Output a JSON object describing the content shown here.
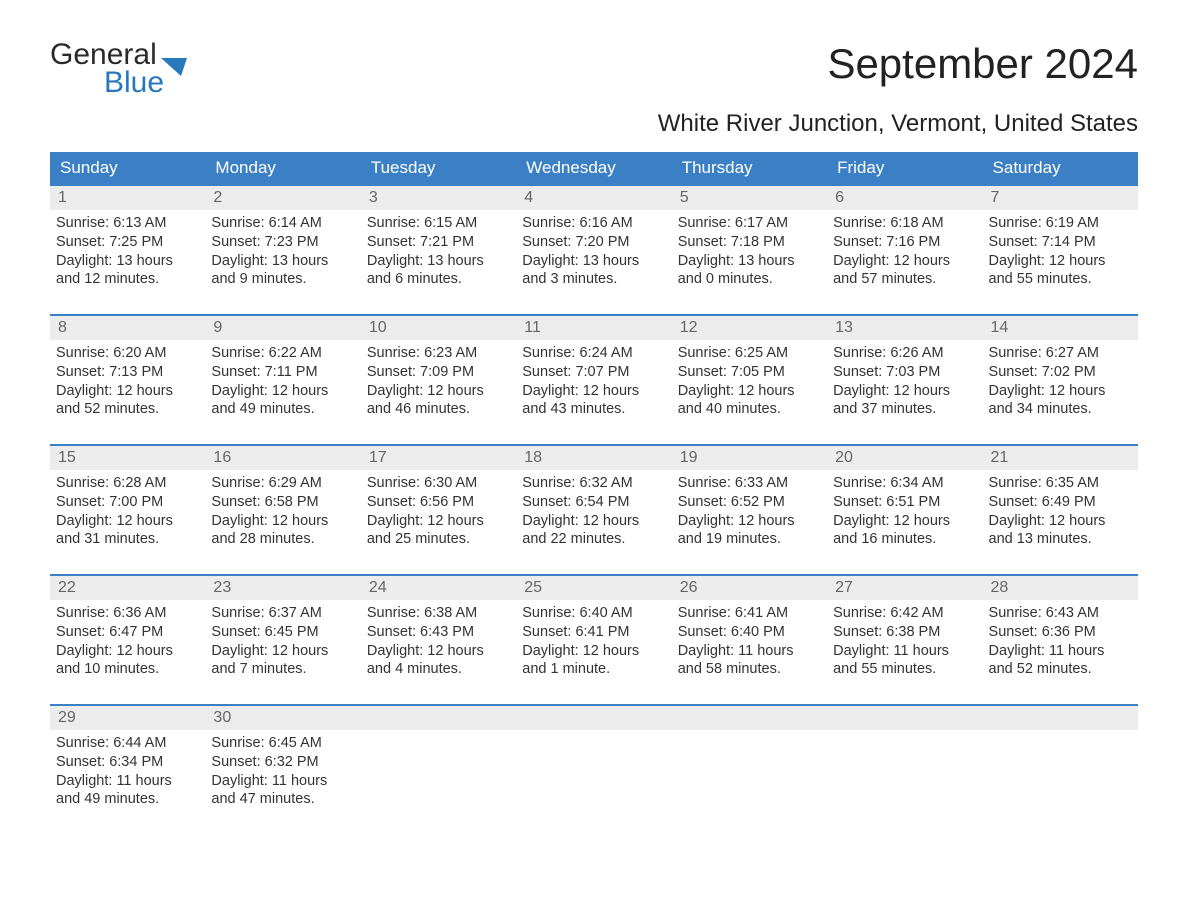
{
  "logo": {
    "word1": "General",
    "word2": "Blue"
  },
  "title": "September 2024",
  "location": "White River Junction, Vermont, United States",
  "colors": {
    "header_bg": "#3b7fc4",
    "header_text": "#ffffff",
    "daynum_bg": "#ececec",
    "daynum_text": "#666666",
    "body_text": "#333333",
    "week_border": "#3b7fc4",
    "logo_accent": "#2878bd"
  },
  "day_headers": [
    "Sunday",
    "Monday",
    "Tuesday",
    "Wednesday",
    "Thursday",
    "Friday",
    "Saturday"
  ],
  "grid": {
    "rows": 5,
    "cols": 7,
    "first_weekday_index": 0,
    "days_in_month": 30
  },
  "days": [
    {
      "n": 1,
      "sunrise": "6:13 AM",
      "sunset": "7:25 PM",
      "daylight": "13 hours and 12 minutes."
    },
    {
      "n": 2,
      "sunrise": "6:14 AM",
      "sunset": "7:23 PM",
      "daylight": "13 hours and 9 minutes."
    },
    {
      "n": 3,
      "sunrise": "6:15 AM",
      "sunset": "7:21 PM",
      "daylight": "13 hours and 6 minutes."
    },
    {
      "n": 4,
      "sunrise": "6:16 AM",
      "sunset": "7:20 PM",
      "daylight": "13 hours and 3 minutes."
    },
    {
      "n": 5,
      "sunrise": "6:17 AM",
      "sunset": "7:18 PM",
      "daylight": "13 hours and 0 minutes."
    },
    {
      "n": 6,
      "sunrise": "6:18 AM",
      "sunset": "7:16 PM",
      "daylight": "12 hours and 57 minutes."
    },
    {
      "n": 7,
      "sunrise": "6:19 AM",
      "sunset": "7:14 PM",
      "daylight": "12 hours and 55 minutes."
    },
    {
      "n": 8,
      "sunrise": "6:20 AM",
      "sunset": "7:13 PM",
      "daylight": "12 hours and 52 minutes."
    },
    {
      "n": 9,
      "sunrise": "6:22 AM",
      "sunset": "7:11 PM",
      "daylight": "12 hours and 49 minutes."
    },
    {
      "n": 10,
      "sunrise": "6:23 AM",
      "sunset": "7:09 PM",
      "daylight": "12 hours and 46 minutes."
    },
    {
      "n": 11,
      "sunrise": "6:24 AM",
      "sunset": "7:07 PM",
      "daylight": "12 hours and 43 minutes."
    },
    {
      "n": 12,
      "sunrise": "6:25 AM",
      "sunset": "7:05 PM",
      "daylight": "12 hours and 40 minutes."
    },
    {
      "n": 13,
      "sunrise": "6:26 AM",
      "sunset": "7:03 PM",
      "daylight": "12 hours and 37 minutes."
    },
    {
      "n": 14,
      "sunrise": "6:27 AM",
      "sunset": "7:02 PM",
      "daylight": "12 hours and 34 minutes."
    },
    {
      "n": 15,
      "sunrise": "6:28 AM",
      "sunset": "7:00 PM",
      "daylight": "12 hours and 31 minutes."
    },
    {
      "n": 16,
      "sunrise": "6:29 AM",
      "sunset": "6:58 PM",
      "daylight": "12 hours and 28 minutes."
    },
    {
      "n": 17,
      "sunrise": "6:30 AM",
      "sunset": "6:56 PM",
      "daylight": "12 hours and 25 minutes."
    },
    {
      "n": 18,
      "sunrise": "6:32 AM",
      "sunset": "6:54 PM",
      "daylight": "12 hours and 22 minutes."
    },
    {
      "n": 19,
      "sunrise": "6:33 AM",
      "sunset": "6:52 PM",
      "daylight": "12 hours and 19 minutes."
    },
    {
      "n": 20,
      "sunrise": "6:34 AM",
      "sunset": "6:51 PM",
      "daylight": "12 hours and 16 minutes."
    },
    {
      "n": 21,
      "sunrise": "6:35 AM",
      "sunset": "6:49 PM",
      "daylight": "12 hours and 13 minutes."
    },
    {
      "n": 22,
      "sunrise": "6:36 AM",
      "sunset": "6:47 PM",
      "daylight": "12 hours and 10 minutes."
    },
    {
      "n": 23,
      "sunrise": "6:37 AM",
      "sunset": "6:45 PM",
      "daylight": "12 hours and 7 minutes."
    },
    {
      "n": 24,
      "sunrise": "6:38 AM",
      "sunset": "6:43 PM",
      "daylight": "12 hours and 4 minutes."
    },
    {
      "n": 25,
      "sunrise": "6:40 AM",
      "sunset": "6:41 PM",
      "daylight": "12 hours and 1 minute."
    },
    {
      "n": 26,
      "sunrise": "6:41 AM",
      "sunset": "6:40 PM",
      "daylight": "11 hours and 58 minutes."
    },
    {
      "n": 27,
      "sunrise": "6:42 AM",
      "sunset": "6:38 PM",
      "daylight": "11 hours and 55 minutes."
    },
    {
      "n": 28,
      "sunrise": "6:43 AM",
      "sunset": "6:36 PM",
      "daylight": "11 hours and 52 minutes."
    },
    {
      "n": 29,
      "sunrise": "6:44 AM",
      "sunset": "6:34 PM",
      "daylight": "11 hours and 49 minutes."
    },
    {
      "n": 30,
      "sunrise": "6:45 AM",
      "sunset": "6:32 PM",
      "daylight": "11 hours and 47 minutes."
    }
  ],
  "labels": {
    "sunrise": "Sunrise:",
    "sunset": "Sunset:",
    "daylight": "Daylight:"
  }
}
